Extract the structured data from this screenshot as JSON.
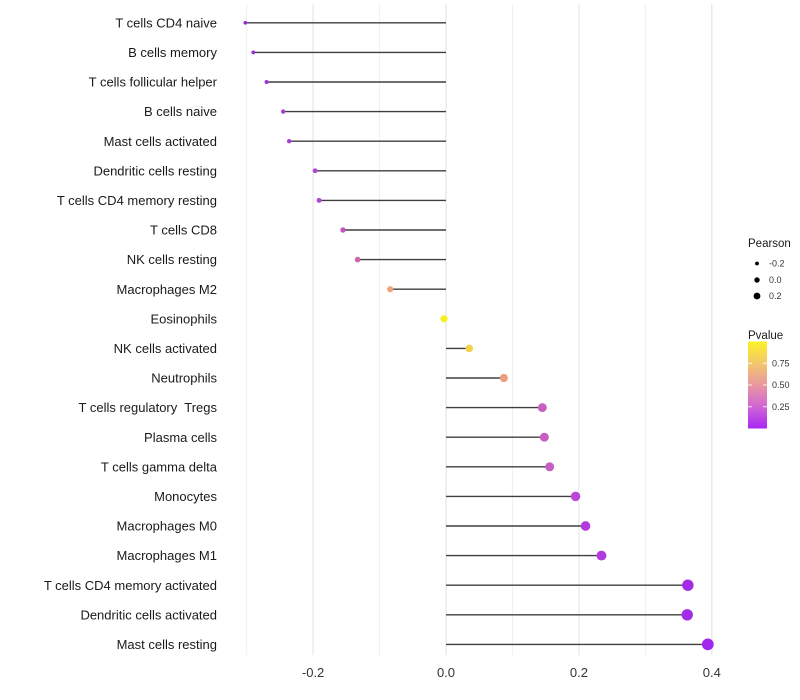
{
  "chart_data": {
    "type": "scatter",
    "subtype": "lollipop",
    "title": "",
    "xlabel": "",
    "ylabel": "",
    "xlim": [
      -0.33,
      0.44
    ],
    "grid": "on",
    "gridline_values": [
      -0.3,
      -0.2,
      -0.1,
      0.0,
      0.1,
      0.2,
      0.3,
      0.4
    ],
    "x_ticks": [
      {
        "label": "-0.2",
        "value": -0.2
      },
      {
        "label": "0.0",
        "value": 0.0
      },
      {
        "label": "0.2",
        "value": 0.2
      },
      {
        "label": "0.4",
        "value": 0.4
      }
    ],
    "points": [
      {
        "label": "T cells CD4 naive",
        "pearson": -0.302,
        "color": "#8F2ADA"
      },
      {
        "label": "B cells memory",
        "pearson": -0.29,
        "color": "#9A30D8"
      },
      {
        "label": "T cells follicular helper",
        "pearson": -0.27,
        "color": "#9E35D6"
      },
      {
        "label": "B cells naive",
        "pearson": -0.245,
        "color": "#A53CD4"
      },
      {
        "label": "Mast cells activated",
        "pearson": -0.236,
        "color": "#A940D2"
      },
      {
        "label": "Dendritic cells resting",
        "pearson": -0.197,
        "color": "#B149CF"
      },
      {
        "label": "T cells CD4 memory resting",
        "pearson": -0.191,
        "color": "#AF4ACF"
      },
      {
        "label": "T cells CD8",
        "pearson": -0.155,
        "color": "#C355BC"
      },
      {
        "label": "NK cells resting",
        "pearson": -0.133,
        "color": "#CA69A9"
      },
      {
        "label": "Macrophages M2",
        "pearson": -0.084,
        "color": "#EDA478"
      },
      {
        "label": "Eosinophils",
        "pearson": -0.003,
        "color": "#F7EE1E"
      },
      {
        "label": "NK cells activated",
        "pearson": 0.035,
        "color": "#F2D24B"
      },
      {
        "label": "Neutrophils",
        "pearson": 0.087,
        "color": "#E9A07E"
      },
      {
        "label": "T cells regulatory  Tregs",
        "pearson": 0.145,
        "color": "#C75FC2"
      },
      {
        "label": "Plasma cells",
        "pearson": 0.148,
        "color": "#C75FC0"
      },
      {
        "label": "T cells gamma delta",
        "pearson": 0.156,
        "color": "#C75EC4"
      },
      {
        "label": "Monocytes",
        "pearson": 0.195,
        "color": "#BB45D6"
      },
      {
        "label": "Macrophages M0",
        "pearson": 0.21,
        "color": "#B33BDE"
      },
      {
        "label": "Macrophages M1",
        "pearson": 0.234,
        "color": "#B13BE0"
      },
      {
        "label": "T cells CD4 memory activated",
        "pearson": 0.364,
        "color": "#A42BE6"
      },
      {
        "label": "Dendritic cells activated",
        "pearson": 0.363,
        "color": "#A42BE6"
      },
      {
        "label": "Mast cells resting",
        "pearson": 0.394,
        "color": "#A227EC"
      }
    ],
    "legend_position": "right",
    "legend_size": {
      "title": "Pearson",
      "entries": [
        {
          "label": "-0.2",
          "value": -0.2
        },
        {
          "label": "0.0",
          "value": 0.0
        },
        {
          "label": "0.2",
          "value": 0.2
        }
      ],
      "glyph_color": "#000000"
    },
    "legend_color": {
      "title": "Pvalue",
      "ticks": [
        {
          "label": "0.75",
          "value": 0.75
        },
        {
          "label": "0.50",
          "value": 0.5
        },
        {
          "label": "0.25",
          "value": 0.25
        }
      ],
      "range": [
        0,
        1
      ],
      "gradient_stops_top_to_bottom": [
        "#FCF226",
        "#F3C66E",
        "#E9989F",
        "#D065D5",
        "#A826F4"
      ]
    },
    "style_colors": {
      "background": "#FFFFFF",
      "gridline_major": "#E2E2E2",
      "gridline_minor": "#EFEFEF",
      "stem_line": "#3F3F3F",
      "axis_text": "#1A1A1A",
      "tick_text": "#333333"
    }
  }
}
